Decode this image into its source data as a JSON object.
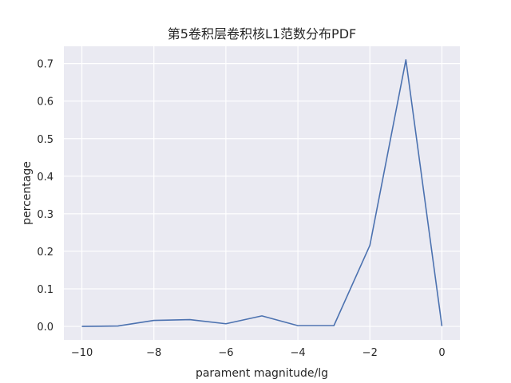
{
  "chart_data": {
    "type": "line",
    "title": "第5卷积层卷积核L1范数分布PDF",
    "xlabel": "parament magnitude/lg",
    "ylabel": "percentage",
    "xlim": [
      -10.5,
      0.5
    ],
    "ylim": [
      -0.036,
      0.746
    ],
    "x_ticks": [
      -10,
      -8,
      -6,
      -4,
      -2,
      0
    ],
    "x_tick_labels": [
      "−10",
      "−8",
      "−6",
      "−4",
      "−2",
      "0"
    ],
    "y_ticks": [
      0.0,
      0.1,
      0.2,
      0.3,
      0.4,
      0.5,
      0.6,
      0.7
    ],
    "y_tick_labels": [
      "0.0",
      "0.1",
      "0.2",
      "0.3",
      "0.4",
      "0.5",
      "0.6",
      "0.7"
    ],
    "grid": true,
    "background_color": "#eaeaf2",
    "grid_color": "#ffffff",
    "series": [
      {
        "color": "#4c72b0",
        "x": [
          -10,
          -9,
          -8,
          -7,
          -6,
          -5,
          -4,
          -3,
          -2,
          -1,
          0
        ],
        "y": [
          0.0,
          0.001,
          0.016,
          0.018,
          0.007,
          0.028,
          0.002,
          0.002,
          0.216,
          0.71,
          0.001
        ]
      }
    ]
  }
}
